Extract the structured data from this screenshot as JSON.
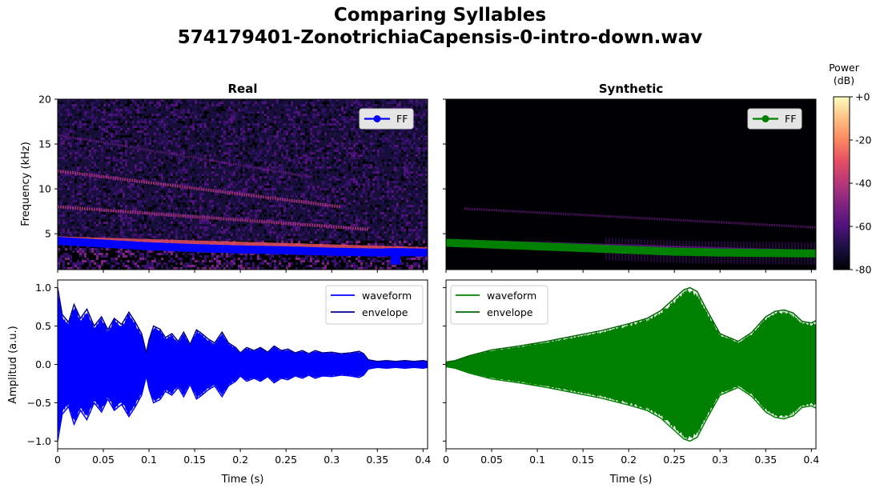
{
  "figure": {
    "title_line1": "Comparing Syllables",
    "title_line2": "574179401-ZonotrichiaCapensis-0-intro-down.wav"
  },
  "colorbar": {
    "label_line1": "Power",
    "label_line2": "(dB)",
    "ticks": [
      "+0",
      "-20",
      "-40",
      "-60",
      "-80"
    ],
    "range_db": [
      -80,
      0
    ],
    "colormap": "magma"
  },
  "chart_data": [
    {
      "type": "heatmap",
      "panel": "spectrogram-real",
      "title": "Real",
      "ylabel": "Frequency (kHz)",
      "ylim": [
        1,
        20
      ],
      "xlim": [
        0,
        0.405
      ],
      "yticks": [
        5,
        10,
        15,
        20
      ],
      "legend": {
        "entries": [
          "FF"
        ],
        "placement": "top-right",
        "color": "#0000ff"
      },
      "harmonics_khz": [
        {
          "x": [
            0.0,
            0.405
          ],
          "y": [
            4.3,
            3.1
          ],
          "strength": "strong"
        },
        {
          "x": [
            0.0,
            0.34
          ],
          "y": [
            8.0,
            5.5
          ],
          "strength": "medium"
        },
        {
          "x": [
            0.0,
            0.31
          ],
          "y": [
            12.0,
            8.0
          ],
          "strength": "medium"
        },
        {
          "x": [
            0.0,
            0.28
          ],
          "y": [
            16.0,
            11.3
          ],
          "strength": "weak"
        }
      ],
      "series": [
        {
          "name": "FF",
          "color": "#0000ff",
          "x": [
            0.0,
            0.05,
            0.1,
            0.15,
            0.2,
            0.25,
            0.3,
            0.35,
            0.37,
            0.4,
            0.405
          ],
          "y": [
            4.2,
            3.9,
            3.6,
            3.4,
            3.25,
            3.15,
            3.0,
            2.9,
            2.95,
            2.9,
            2.9
          ]
        }
      ]
    },
    {
      "type": "heatmap",
      "panel": "spectrogram-synthetic",
      "title": "Synthetic",
      "ylabel": "",
      "ylim": [
        1,
        20
      ],
      "xlim": [
        0,
        0.405
      ],
      "legend": {
        "entries": [
          "FF"
        ],
        "placement": "top-right",
        "color": "#008000"
      },
      "harmonics_khz": [
        {
          "x": [
            0.0,
            0.405
          ],
          "y": [
            4.0,
            2.8
          ],
          "strength": "strong"
        },
        {
          "x": [
            0.02,
            0.405
          ],
          "y": [
            7.8,
            5.7
          ],
          "strength": "weak"
        }
      ],
      "series": [
        {
          "name": "FF",
          "color": "#008000",
          "x": [
            0.0,
            0.05,
            0.1,
            0.15,
            0.2,
            0.25,
            0.3,
            0.35,
            0.4,
            0.405
          ],
          "y": [
            4.0,
            3.8,
            3.6,
            3.4,
            3.2,
            3.0,
            2.9,
            2.85,
            2.8,
            2.8
          ]
        }
      ]
    },
    {
      "type": "area",
      "panel": "waveform-real",
      "title": "",
      "xlabel": "Time (s)",
      "ylabel": "Amplitud (a.u.)",
      "xlim": [
        0,
        0.405
      ],
      "ylim": [
        -1.1,
        1.1
      ],
      "xticks": [
        "0",
        "0.05",
        "0.1",
        "0.15",
        "0.2",
        "0.25",
        "0.3",
        "0.35",
        "0.4"
      ],
      "yticks": [
        "1.0",
        "0.5",
        "0.0",
        "-0.5",
        "-1.0"
      ],
      "legend": {
        "placement": "top-right"
      },
      "series": [
        {
          "name": "waveform",
          "color": "#0000ff"
        },
        {
          "name": "envelope",
          "color": "#00008b",
          "x": [
            0.0,
            0.005,
            0.012,
            0.018,
            0.025,
            0.032,
            0.04,
            0.048,
            0.055,
            0.062,
            0.07,
            0.078,
            0.085,
            0.092,
            0.097,
            0.1,
            0.105,
            0.112,
            0.118,
            0.125,
            0.132,
            0.138,
            0.145,
            0.152,
            0.158,
            0.165,
            0.172,
            0.18,
            0.187,
            0.195,
            0.2,
            0.207,
            0.215,
            0.222,
            0.23,
            0.237,
            0.245,
            0.252,
            0.26,
            0.268,
            0.275,
            0.282,
            0.29,
            0.3,
            0.31,
            0.32,
            0.33,
            0.335,
            0.34,
            0.35,
            0.36,
            0.37,
            0.38,
            0.39,
            0.4,
            0.405
          ],
          "y": [
            1.0,
            0.65,
            0.55,
            0.78,
            0.6,
            0.72,
            0.5,
            0.62,
            0.45,
            0.6,
            0.52,
            0.68,
            0.55,
            0.4,
            0.15,
            0.32,
            0.5,
            0.46,
            0.35,
            0.4,
            0.3,
            0.42,
            0.26,
            0.45,
            0.4,
            0.33,
            0.28,
            0.42,
            0.28,
            0.22,
            0.15,
            0.22,
            0.18,
            0.22,
            0.16,
            0.24,
            0.18,
            0.2,
            0.15,
            0.18,
            0.14,
            0.18,
            0.15,
            0.16,
            0.14,
            0.15,
            0.17,
            0.14,
            0.06,
            0.04,
            0.05,
            0.04,
            0.05,
            0.04,
            0.05,
            0.04
          ]
        }
      ]
    },
    {
      "type": "area",
      "panel": "waveform-synthetic",
      "title": "",
      "xlabel": "Time (s)",
      "ylabel": "",
      "xlim": [
        0,
        0.405
      ],
      "ylim": [
        -1.1,
        1.1
      ],
      "legend": {
        "placement": "top-left"
      },
      "series": [
        {
          "name": "waveform",
          "color": "#008000"
        },
        {
          "name": "envelope",
          "color": "#006400",
          "x": [
            0.0,
            0.01,
            0.025,
            0.05,
            0.08,
            0.11,
            0.14,
            0.17,
            0.2,
            0.22,
            0.235,
            0.25,
            0.26,
            0.267,
            0.275,
            0.285,
            0.3,
            0.32,
            0.335,
            0.35,
            0.36,
            0.37,
            0.38,
            0.39,
            0.4,
            0.405
          ],
          "y": [
            0.03,
            0.05,
            0.11,
            0.19,
            0.24,
            0.3,
            0.37,
            0.44,
            0.53,
            0.6,
            0.7,
            0.86,
            0.97,
            1.0,
            0.95,
            0.72,
            0.4,
            0.3,
            0.42,
            0.62,
            0.69,
            0.71,
            0.67,
            0.56,
            0.54,
            0.57
          ]
        }
      ]
    }
  ]
}
